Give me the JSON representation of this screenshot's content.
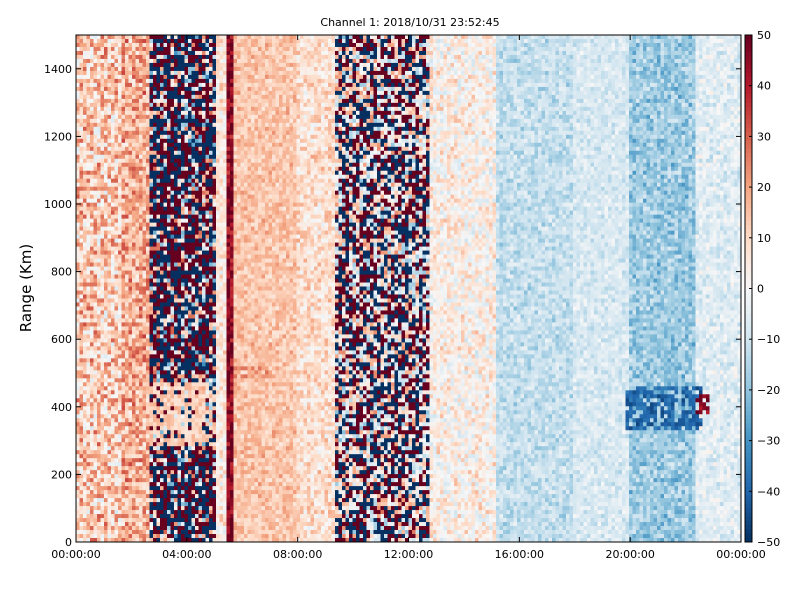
{
  "chart_data": {
    "type": "heatmap",
    "title": "Channel 1: 2018/10/31 23:52:45",
    "xlabel": "",
    "ylabel": "Range (Km)",
    "x_tick_labels": [
      "00:00:00",
      "04:00:00",
      "08:00:00",
      "12:00:00",
      "16:00:00",
      "20:00:00",
      "00:00:00"
    ],
    "x_tick_hours": [
      0,
      4,
      8,
      12,
      16,
      20,
      24
    ],
    "xlim_hours": [
      0,
      24
    ],
    "y_ticks": [
      0,
      200,
      400,
      600,
      800,
      1000,
      1200,
      1400
    ],
    "ylim": [
      0,
      1500
    ],
    "colorbar": {
      "ticks": [
        50,
        40,
        30,
        20,
        10,
        0,
        -10,
        -20,
        -30,
        -40,
        -50
      ],
      "range": [
        -50,
        50
      ],
      "colormap": "RdBu_r",
      "colors": [
        "#053061",
        "#2166ac",
        "#4393c3",
        "#92c5de",
        "#d1e5f0",
        "#f7f7f7",
        "#fddbc7",
        "#f4a582",
        "#d6604d",
        "#b2182b",
        "#67001f"
      ]
    },
    "grid": false,
    "time_bands": [
      {
        "start_hour": 0.0,
        "end_hour": 1.6,
        "mean": 12,
        "noise": 0.55
      },
      {
        "start_hour": 1.6,
        "end_hour": 2.6,
        "mean": 18,
        "noise": 0.45
      },
      {
        "start_hour": 2.6,
        "end_hour": 5.0,
        "mean": 0,
        "noise": 0.95
      },
      {
        "start_hour": 5.0,
        "end_hour": 5.4,
        "mean": 5,
        "noise": 0.3
      },
      {
        "start_hour": 5.4,
        "end_hour": 5.7,
        "mean": 45,
        "noise": 0.3
      },
      {
        "start_hour": 5.7,
        "end_hour": 8.0,
        "mean": 14,
        "noise": 0.2
      },
      {
        "start_hour": 8.0,
        "end_hour": 9.4,
        "mean": 8,
        "noise": 0.3
      },
      {
        "start_hour": 9.4,
        "end_hour": 12.8,
        "mean": 2,
        "noise": 0.7
      },
      {
        "start_hour": 12.8,
        "end_hour": 15.2,
        "mean": 3,
        "noise": 0.35
      },
      {
        "start_hour": 15.2,
        "end_hour": 18.0,
        "mean": -12,
        "noise": 0.2
      },
      {
        "start_hour": 18.0,
        "end_hour": 20.0,
        "mean": -8,
        "noise": 0.15
      },
      {
        "start_hour": 20.0,
        "end_hour": 22.4,
        "mean": -18,
        "noise": 0.25
      },
      {
        "start_hour": 22.4,
        "end_hour": 24.0,
        "mean": -6,
        "noise": 0.2
      }
    ],
    "features": [
      {
        "start_hour": 19.8,
        "end_hour": 22.6,
        "range_start": 330,
        "range_end": 460,
        "value": -40
      },
      {
        "start_hour": 22.3,
        "end_hour": 22.8,
        "range_start": 380,
        "range_end": 440,
        "value": 45
      },
      {
        "start_hour": 2.6,
        "end_hour": 5.0,
        "range_start": 280,
        "range_end": 470,
        "value": 12
      },
      {
        "start_hour": 5.7,
        "end_hour": 7.0,
        "range_start": 480,
        "range_end": 520,
        "value": 22
      }
    ]
  }
}
